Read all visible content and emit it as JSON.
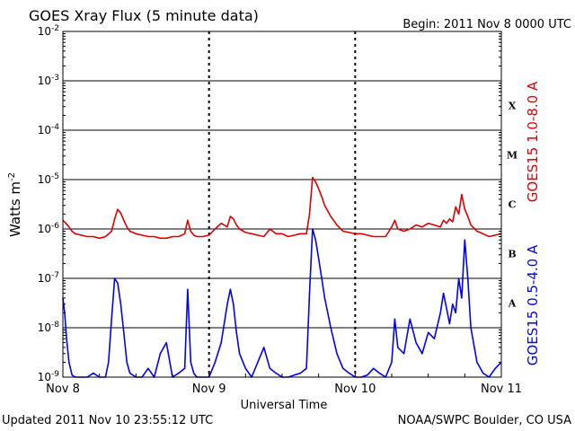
{
  "header": {
    "title": "GOES Xray Flux (5 minute data)",
    "begin": "Begin:  2011 Nov 8 0000 UTC"
  },
  "footer": {
    "updated": "Updated 2011 Nov 10 23:55:12 UTC",
    "source": "NOAA/SWPC Boulder, CO USA"
  },
  "colors": {
    "long_channel": "#e00000",
    "short_channel": "#0000ff",
    "grid": "#000000"
  },
  "chart_data": {
    "type": "line",
    "title": "GOES Xray Flux (5 minute data)",
    "xlabel": "Universal Time",
    "ylabel_base": "Watts m",
    "ylabel_exp": "-2",
    "yscale": "log",
    "ylim": [
      1e-09,
      0.01
    ],
    "xlim": [
      0,
      72
    ],
    "x_units": "hours since 2011 Nov 8 0000 UTC",
    "x_ticks": [
      {
        "x": 0,
        "label": "Nov 8"
      },
      {
        "x": 24,
        "label": "Nov 9"
      },
      {
        "x": 48,
        "label": "Nov 10"
      },
      {
        "x": 72,
        "label": "Nov 11"
      }
    ],
    "y_ticks": [
      {
        "exp": -2,
        "label": "10",
        "sup": "-2"
      },
      {
        "exp": -3,
        "label": "10",
        "sup": "-3"
      },
      {
        "exp": -4,
        "label": "10",
        "sup": "-4"
      },
      {
        "exp": -5,
        "label": "10",
        "sup": "-5"
      },
      {
        "exp": -6,
        "label": "10",
        "sup": "-6"
      },
      {
        "exp": -7,
        "label": "10",
        "sup": "-7"
      },
      {
        "exp": -8,
        "label": "10",
        "sup": "-8"
      },
      {
        "exp": -9,
        "label": "10",
        "sup": "-9"
      }
    ],
    "flare_classes": [
      {
        "label": "X",
        "exp": -3.5
      },
      {
        "label": "M",
        "exp": -4.5
      },
      {
        "label": "C",
        "exp": -5.5
      },
      {
        "label": "B",
        "exp": -6.5
      },
      {
        "label": "A",
        "exp": -7.5
      }
    ],
    "grid": true,
    "series": [
      {
        "name": "GOES15 1.0-8.0 A",
        "color": "#e00000",
        "x": [
          0,
          0.5,
          1,
          1.5,
          2,
          3,
          4,
          5,
          6,
          7,
          8,
          8.5,
          9,
          9.5,
          10,
          10.5,
          11,
          12,
          13,
          14,
          15,
          16,
          17,
          18,
          19,
          20,
          20.5,
          21,
          21.5,
          22,
          23,
          24,
          25,
          26,
          27,
          27.5,
          28,
          28.5,
          29,
          30,
          31,
          32,
          33,
          34,
          35,
          36,
          37,
          38,
          39,
          40,
          40.5,
          41,
          41.5,
          42,
          42.5,
          43,
          44,
          45,
          46,
          47,
          48,
          49,
          50,
          51,
          52,
          53,
          54,
          54.5,
          55,
          56,
          57,
          58,
          59,
          60,
          61,
          62,
          62.5,
          63,
          63.5,
          64,
          64.5,
          65,
          65.5,
          66,
          66.5,
          67,
          68,
          69,
          70,
          71,
          72
        ],
        "y": [
          1.5e-06,
          1.3e-06,
          1.1e-06,
          9e-07,
          8e-07,
          7.5e-07,
          7e-07,
          7e-07,
          6.5e-07,
          7e-07,
          9e-07,
          1.6e-06,
          2.5e-06,
          2.1e-06,
          1.5e-06,
          1.1e-06,
          9e-07,
          8e-07,
          7.5e-07,
          7e-07,
          7e-07,
          6.5e-07,
          6.5e-07,
          7e-07,
          7e-07,
          8e-07,
          1.5e-06,
          9e-07,
          7.5e-07,
          7e-07,
          7e-07,
          7.5e-07,
          1e-06,
          1.3e-06,
          1.1e-06,
          1.8e-06,
          1.6e-06,
          1.2e-06,
          1e-06,
          8.5e-07,
          8e-07,
          7.5e-07,
          7e-07,
          1e-06,
          8e-07,
          8e-07,
          7e-07,
          7.5e-07,
          8e-07,
          8e-07,
          2e-06,
          1.1e-05,
          9e-06,
          6.5e-06,
          4.5e-06,
          3e-06,
          1.8e-06,
          1.2e-06,
          9e-07,
          8.5e-07,
          8e-07,
          8e-07,
          7.5e-07,
          7e-07,
          7e-07,
          7e-07,
          1.1e-06,
          1.5e-06,
          1e-06,
          9e-07,
          1e-06,
          1.2e-06,
          1.1e-06,
          1.3e-06,
          1.2e-06,
          1.1e-06,
          1.5e-06,
          1.3e-06,
          1.6e-06,
          1.4e-06,
          2.8e-06,
          2e-06,
          5e-06,
          2.5e-06,
          1.8e-06,
          1.2e-06,
          9e-07,
          8e-07,
          7e-07,
          7.5e-07,
          8e-07
        ]
      },
      {
        "name": "GOES15 0.5-4.0 A",
        "color": "#0000ff",
        "x": [
          0,
          0.3,
          0.6,
          1,
          1.5,
          2,
          3,
          4,
          5,
          6,
          7,
          7.5,
          8,
          8.5,
          9,
          9.5,
          10,
          10.5,
          11,
          12,
          13,
          14,
          15,
          16,
          17,
          18,
          19,
          20,
          20.5,
          21,
          21.5,
          22,
          23,
          24,
          25,
          26,
          27,
          27.5,
          28,
          28.5,
          29,
          30,
          31,
          32,
          33,
          34,
          35,
          36,
          37,
          38,
          39,
          40,
          40.5,
          41,
          41.5,
          42,
          42.5,
          43,
          43.5,
          44,
          45,
          46,
          47,
          48,
          49,
          50,
          51,
          52,
          53,
          54,
          54.5,
          55,
          56,
          57,
          58,
          59,
          60,
          61,
          62,
          62.5,
          63,
          63.5,
          64,
          64.5,
          65,
          65.5,
          66,
          66.5,
          67,
          68,
          69,
          70,
          71,
          72
        ],
        "y": [
          4e-08,
          2e-08,
          6e-09,
          2e-09,
          1.1e-09,
          1e-09,
          1e-09,
          1e-09,
          1.2e-09,
          1e-09,
          1e-09,
          2e-09,
          1.5e-08,
          1e-07,
          8e-08,
          3e-08,
          8e-09,
          2e-09,
          1.2e-09,
          1e-09,
          1e-09,
          1.5e-09,
          1e-09,
          3e-09,
          5e-09,
          1e-09,
          1.2e-09,
          1.5e-09,
          6e-08,
          2e-09,
          1.2e-09,
          1e-09,
          1e-09,
          1e-09,
          2e-09,
          5e-09,
          3e-08,
          6e-08,
          3e-08,
          8e-09,
          3e-09,
          1.5e-09,
          1e-09,
          2e-09,
          4e-09,
          1.5e-09,
          1.2e-09,
          1e-09,
          1e-09,
          1.1e-09,
          1.2e-09,
          1.5e-09,
          5e-08,
          1e-06,
          6e-07,
          2.5e-07,
          1e-07,
          4e-08,
          2e-08,
          1e-08,
          3e-09,
          1.5e-09,
          1.2e-09,
          1e-09,
          1e-09,
          1.1e-09,
          1.5e-09,
          1.2e-09,
          1e-09,
          2e-09,
          1.5e-08,
          4e-09,
          3e-09,
          1.5e-08,
          5e-09,
          3e-09,
          8e-09,
          6e-09,
          2e-08,
          5e-08,
          2.5e-08,
          1.2e-08,
          3e-08,
          2e-08,
          1e-07,
          4e-08,
          6e-07,
          1e-07,
          1e-08,
          2e-09,
          1.2e-09,
          1e-09,
          1.5e-09,
          2e-09
        ]
      }
    ]
  }
}
